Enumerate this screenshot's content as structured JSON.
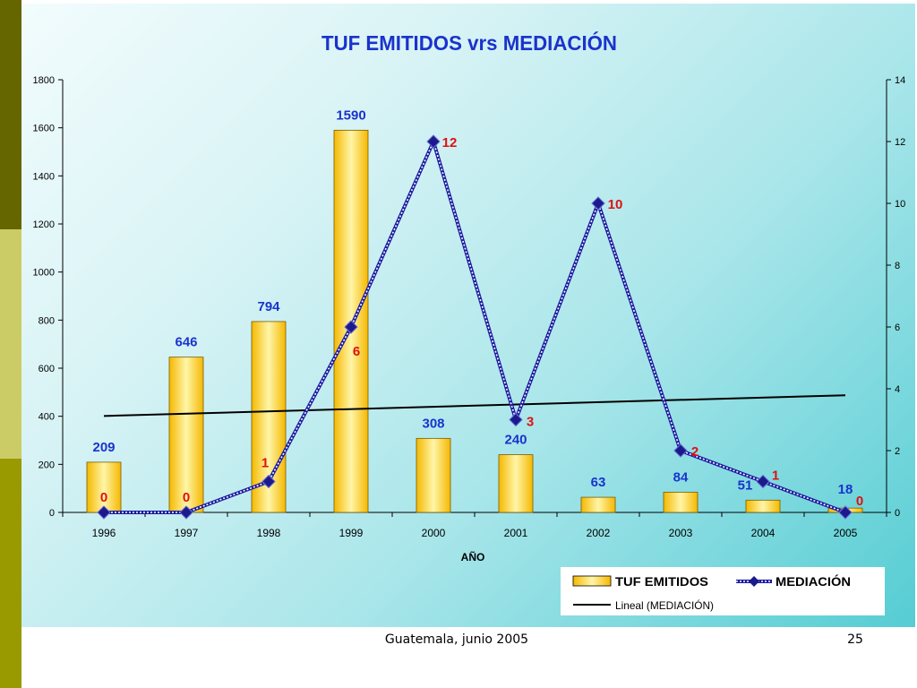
{
  "colors": {
    "sidebar_dark": "#666600",
    "sidebar_light": "#cccc66",
    "sidebar_olive": "#999900",
    "bar_fill": "#ffd21c",
    "bar_stroke": "#7a5c00",
    "bar_label": "#1a33cc",
    "line_label": "#e01010",
    "title": "#1a33cc",
    "line": "#1a1aa0",
    "marker": "#1a1a8c",
    "trend": "#000000"
  },
  "footer": {
    "text": "Guatemala, junio 2005",
    "page": "25"
  },
  "chart_data": {
    "type": "bar",
    "title": "TUF EMITIDOS vrs MEDIACIÓN",
    "xlabel": "AÑO",
    "ylabel": "",
    "y2label": "",
    "categories": [
      "1996",
      "1997",
      "1998",
      "1999",
      "2000",
      "2001",
      "2002",
      "2003",
      "2004",
      "2005"
    ],
    "ylim": [
      0,
      1800
    ],
    "yticks": [
      0,
      200,
      400,
      600,
      800,
      1000,
      1200,
      1400,
      1600,
      1800
    ],
    "y2lim": [
      0,
      14
    ],
    "y2ticks": [
      0,
      2,
      4,
      6,
      8,
      10,
      12,
      14
    ],
    "grid": false,
    "legend_position": "bottom-right",
    "series": [
      {
        "name": "TUF EMITIDOS",
        "type": "bar",
        "axis": "left",
        "values": [
          209,
          646,
          794,
          1590,
          308,
          240,
          63,
          84,
          51,
          18
        ],
        "labels": [
          "209",
          "646",
          "794",
          "1590",
          "308",
          "240",
          "63",
          "84",
          "51",
          "18"
        ]
      },
      {
        "name": "MEDIACIÓN",
        "type": "line",
        "axis": "right",
        "values": [
          0,
          0,
          1,
          6,
          12,
          3,
          10,
          2,
          1,
          0
        ],
        "labels": [
          "0",
          "0",
          "1",
          "6",
          "12",
          "3",
          "10",
          "2",
          "1",
          "0"
        ]
      },
      {
        "name": "Lineal (MEDIACIÓN)",
        "type": "trendline",
        "axis": "right",
        "values": [
          3.12,
          3.19,
          3.27,
          3.34,
          3.42,
          3.49,
          3.56,
          3.64,
          3.71,
          3.79
        ]
      }
    ]
  }
}
